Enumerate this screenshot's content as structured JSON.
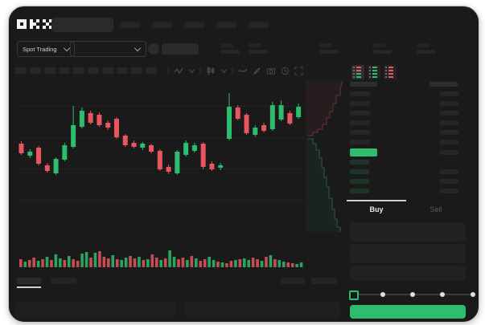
{
  "brand": "OKX",
  "topbar": {
    "nav_item_count": 5
  },
  "market_selector": {
    "label": "Spot Trading"
  },
  "pair_header": {
    "stat_group_count": 5
  },
  "chart_toolbar": {
    "timeframe_button_count": 10
  },
  "trade_panel": {
    "buy_tab": "Buy",
    "sell_tab": "Sell",
    "slider": {
      "dot_count": 5,
      "value_percent": 0
    },
    "input_placeholder_count": 3
  },
  "orderbook": {
    "mode_icons": [
      "book-both-icon",
      "book-bids-icon",
      "book-asks-icon"
    ],
    "ask_row_count": 6,
    "bid_row_count": 4,
    "highlight_row": "current-price-green"
  },
  "colors": {
    "up": "#2ebd6f",
    "down": "#e8565f",
    "accent": "#2ebd6f",
    "bid_dim": "#1d3527",
    "grid": "#232323",
    "depth_ask_line": "#7a3b41",
    "depth_bid_line": "#2b6b5c",
    "depth_ask_fill": "rgba(150,60,66,0.12)",
    "depth_bid_fill": "rgba(40,110,90,0.12)"
  },
  "chart_data": {
    "type": "candlestick",
    "title": "",
    "xlabel": "",
    "ylabel": "",
    "ylim": [
      0,
      192
    ],
    "grid_y": [
      33.5,
      72.5,
      111.5,
      150.5
    ],
    "ohlc": [
      [
        112,
        115,
        98,
        100
      ],
      [
        97,
        105,
        94,
        102
      ],
      [
        107,
        109,
        85,
        87
      ],
      [
        85,
        88,
        76,
        78
      ],
      [
        75,
        95,
        73,
        93
      ],
      [
        92,
        113,
        90,
        110
      ],
      [
        108,
        159,
        106,
        135
      ],
      [
        133,
        157,
        131,
        153
      ],
      [
        150,
        153,
        136,
        138
      ],
      [
        148,
        151,
        133,
        135
      ],
      [
        138,
        141,
        129,
        132
      ],
      [
        143,
        145,
        118,
        120
      ],
      [
        122,
        124,
        108,
        110
      ],
      [
        113,
        116,
        106,
        108
      ],
      [
        107,
        114,
        104,
        112
      ],
      [
        110,
        112,
        100,
        102
      ],
      [
        103,
        105,
        78,
        80
      ],
      [
        83,
        86,
        74,
        77
      ],
      [
        75,
        104,
        73,
        102
      ],
      [
        98,
        116,
        96,
        113
      ],
      [
        103,
        113,
        101,
        110
      ],
      [
        112,
        114,
        80,
        83
      ],
      [
        87,
        90,
        78,
        80
      ],
      [
        82,
        88,
        79,
        85
      ],
      [
        118,
        175,
        116,
        158
      ],
      [
        157,
        160,
        141,
        143
      ],
      [
        148,
        150,
        123,
        125
      ],
      [
        123,
        135,
        121,
        132
      ],
      [
        135,
        138,
        126,
        128
      ],
      [
        130,
        164,
        128,
        160
      ],
      [
        142,
        166,
        140,
        160
      ],
      [
        150,
        153,
        135,
        137
      ],
      [
        145,
        162,
        143,
        158
      ]
    ],
    "volume": {
      "heights": [
        10,
        7,
        9,
        12,
        8,
        10,
        13,
        9,
        16,
        11,
        9,
        14,
        10,
        8,
        17,
        19,
        12,
        18,
        20,
        13,
        11,
        15,
        10,
        9,
        12,
        14,
        11,
        13,
        9,
        10,
        16,
        12,
        9,
        11,
        21,
        13,
        10,
        12,
        9,
        14,
        11,
        8,
        10,
        13,
        9,
        7,
        6,
        5,
        8,
        9,
        10,
        11,
        9,
        12,
        10,
        8,
        13,
        15,
        10,
        9,
        7,
        6,
        5,
        4,
        6
      ],
      "colors": [
        "r",
        "g",
        "r",
        "r",
        "g",
        "r",
        "g",
        "r",
        "g",
        "g",
        "r",
        "g",
        "r",
        "r",
        "g",
        "g",
        "r",
        "g",
        "r",
        "r",
        "r",
        "g",
        "r",
        "g",
        "g",
        "r",
        "r",
        "g",
        "r",
        "g",
        "r",
        "r",
        "g",
        "r",
        "g",
        "g",
        "r",
        "r",
        "g",
        "r",
        "g",
        "r",
        "r",
        "g",
        "g",
        "r",
        "g",
        "r",
        "r",
        "g",
        "r",
        "g",
        "g",
        "r",
        "r",
        "g",
        "r",
        "g",
        "r",
        "g",
        "g",
        "r",
        "r",
        "g",
        "g"
      ]
    },
    "depth": {
      "asks_line": [
        [
          405,
          2
        ],
        [
          402,
          12
        ],
        [
          402,
          20
        ],
        [
          397,
          20
        ],
        [
          397,
          30
        ],
        [
          393,
          30
        ],
        [
          393,
          40
        ],
        [
          389,
          40
        ],
        [
          389,
          48
        ],
        [
          385,
          48
        ],
        [
          385,
          56
        ],
        [
          380,
          56
        ],
        [
          380,
          62
        ],
        [
          374,
          62
        ],
        [
          374,
          66
        ],
        [
          368,
          66
        ],
        [
          368,
          70
        ],
        [
          361,
          70
        ]
      ],
      "bids_line": [
        [
          361,
          74
        ],
        [
          368,
          74
        ],
        [
          368,
          80
        ],
        [
          372,
          80
        ],
        [
          372,
          88
        ],
        [
          376,
          88
        ],
        [
          376,
          98
        ],
        [
          379,
          98
        ],
        [
          379,
          110
        ],
        [
          382,
          110
        ],
        [
          382,
          122
        ],
        [
          385,
          122
        ],
        [
          385,
          134
        ],
        [
          388,
          134
        ],
        [
          388,
          148
        ],
        [
          392,
          148
        ],
        [
          392,
          162
        ],
        [
          395,
          162
        ],
        [
          395,
          174
        ],
        [
          398,
          174
        ],
        [
          398,
          184
        ],
        [
          402,
          184
        ],
        [
          402,
          190
        ]
      ]
    }
  }
}
